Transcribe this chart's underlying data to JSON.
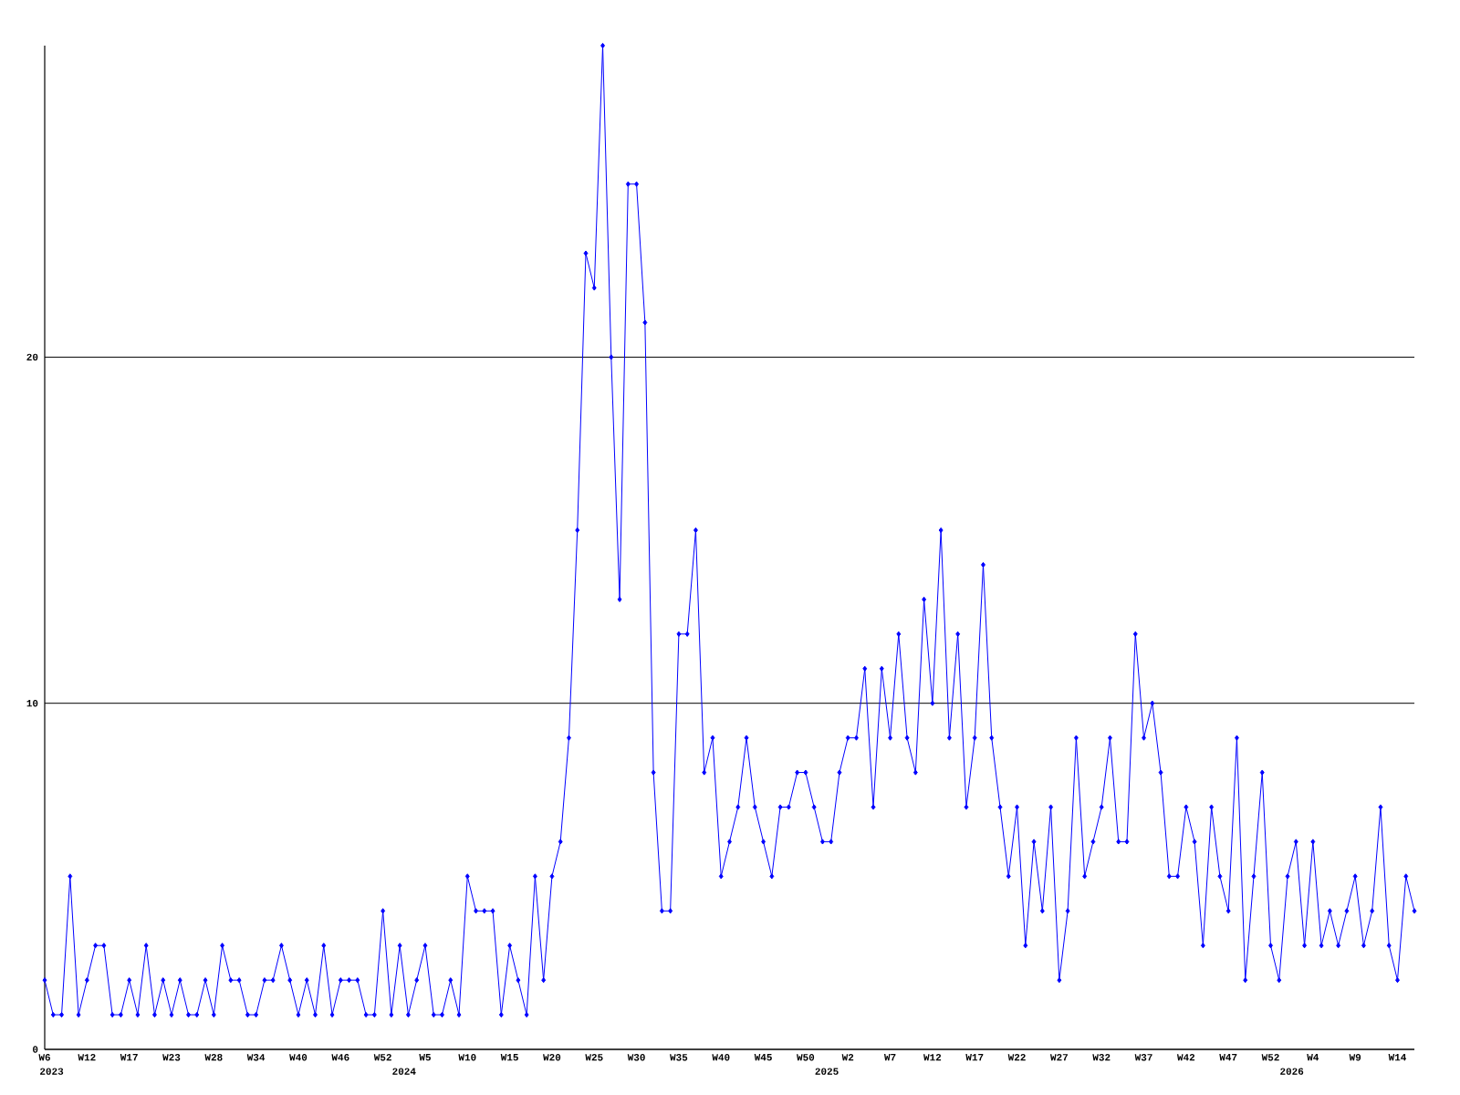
{
  "chart_data": {
    "type": "line",
    "categories": [
      "W6",
      null,
      null,
      null,
      null,
      "W12",
      null,
      null,
      null,
      null,
      "W17",
      null,
      null,
      null,
      null,
      "W23",
      null,
      null,
      null,
      null,
      "W28",
      null,
      null,
      null,
      null,
      "W34",
      null,
      null,
      null,
      null,
      "W40",
      null,
      null,
      null,
      null,
      "W46",
      null,
      null,
      null,
      null,
      "W52",
      null,
      null,
      null,
      null,
      "W5",
      null,
      null,
      null,
      null,
      "W10",
      null,
      null,
      null,
      null,
      "W15",
      null,
      null,
      null,
      null,
      "W20",
      null,
      null,
      null,
      null,
      "W25",
      null,
      null,
      null,
      null,
      "W30",
      null,
      null,
      null,
      null,
      "W35",
      null,
      null,
      null,
      null,
      "W40",
      null,
      null,
      null,
      null,
      "W45",
      null,
      null,
      null,
      null,
      "W50",
      null,
      null,
      null,
      null,
      "W2",
      null,
      null,
      null,
      null,
      "W7",
      null,
      null,
      null,
      null,
      "W12",
      null,
      null,
      null,
      null,
      "W17",
      null,
      null,
      null,
      null,
      "W22",
      null,
      null,
      null,
      null,
      "W27",
      null,
      null,
      null,
      null,
      "W32",
      null,
      null,
      null,
      null,
      "W37",
      null,
      null,
      null,
      null,
      "W42",
      null,
      null,
      null,
      null,
      "W47",
      null,
      null,
      null,
      null,
      "W52",
      null,
      null,
      null,
      null,
      "W4",
      null,
      null,
      null,
      null,
      "W9",
      null,
      null,
      null,
      null,
      "W14",
      null,
      null
    ],
    "values": [
      2,
      1,
      1,
      5,
      1,
      2,
      3,
      3,
      1,
      1,
      2,
      1,
      3,
      1,
      2,
      1,
      2,
      1,
      1,
      2,
      1,
      3,
      2,
      2,
      1,
      1,
      2,
      2,
      3,
      2,
      1,
      2,
      1,
      3,
      1,
      2,
      2,
      2,
      1,
      1,
      4,
      1,
      3,
      1,
      2,
      3,
      1,
      1,
      2,
      1,
      5,
      4,
      4,
      4,
      1,
      3,
      2,
      1,
      5,
      2,
      5,
      6,
      9,
      15,
      23,
      22,
      29,
      20,
      13,
      25,
      25,
      21,
      8,
      4,
      4,
      12,
      12,
      15,
      8,
      9,
      5,
      6,
      7,
      9,
      7,
      6,
      5,
      7,
      7,
      8,
      8,
      7,
      6,
      6,
      8,
      9,
      9,
      11,
      7,
      11,
      9,
      12,
      9,
      8,
      13,
      10,
      15,
      9,
      12,
      7,
      9,
      14,
      9,
      7,
      5,
      7,
      3,
      6,
      4,
      7,
      2,
      4,
      9,
      5,
      6,
      7,
      9,
      6,
      6,
      12,
      9,
      10,
      8,
      5,
      5,
      7,
      6,
      3,
      7,
      5,
      4,
      9,
      2,
      5,
      8,
      3,
      2,
      5,
      6,
      3,
      6,
      3,
      4,
      3,
      4,
      5,
      3,
      4,
      7,
      3,
      2,
      5,
      4
    ],
    "color": "#0000ff",
    "ylim": [
      0,
      29
    ],
    "yticks": [
      0,
      10,
      20
    ],
    "grid": "y",
    "marker": "diamond",
    "annotations": [
      "2023",
      "2024",
      "2025",
      "2026"
    ]
  }
}
